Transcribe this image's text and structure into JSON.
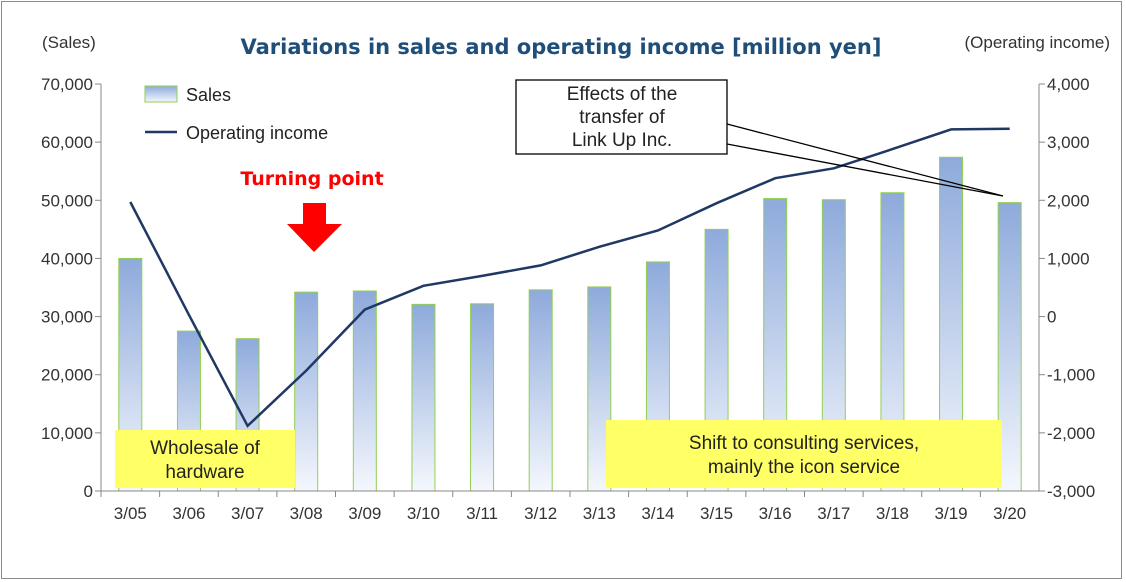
{
  "chart_data": {
    "type": "bar",
    "title": "Variations in sales and operating income [million yen]",
    "left_axis_label": "(Sales)",
    "right_axis_label": "(Operating income)",
    "categories": [
      "3/05",
      "3/06",
      "3/07",
      "3/08",
      "3/09",
      "3/10",
      "3/11",
      "3/12",
      "3/13",
      "3/14",
      "3/15",
      "3/16",
      "3/17",
      "3/18",
      "3/19",
      "3/20"
    ],
    "series": [
      {
        "name": "Sales",
        "type": "bar",
        "axis": "left",
        "values": [
          40000,
          27500,
          26200,
          34200,
          34400,
          32100,
          32200,
          34600,
          35100,
          39400,
          45000,
          50300,
          50100,
          51300,
          57400,
          49600
        ]
      },
      {
        "name": "Operating income",
        "type": "line",
        "axis": "right",
        "values": [
          1970,
          30,
          -1880,
          -930,
          120,
          530,
          700,
          880,
          1200,
          1480,
          1950,
          2380,
          2550,
          2880,
          3220,
          3230
        ]
      }
    ],
    "ylim_left": [
      0,
      70000
    ],
    "ylim_right": [
      -3000,
      4000
    ],
    "yticks_left": [
      "0",
      "10,000",
      "20,000",
      "30,000",
      "40,000",
      "50,000",
      "60,000",
      "70,000"
    ],
    "yticks_right": [
      "-3,000",
      "-2,000",
      "-1,000",
      "0",
      "1,000",
      "2,000",
      "3,000",
      "4,000"
    ],
    "yticks_right_values": [
      -3000,
      -2000,
      -1000,
      0,
      1000,
      2000,
      3000,
      4000
    ],
    "legend_position": "top-left",
    "grid": false
  },
  "annotations": {
    "turning_point": "Turning point",
    "transfer_note": [
      "Effects of the",
      "transfer of",
      "Link Up Inc."
    ],
    "wholesale": [
      "Wholesale of",
      "hardware"
    ],
    "consulting": [
      "Shift to consulting services,",
      "mainly the icon service"
    ]
  },
  "colors": {
    "bar_top": "#8eaadb",
    "bar_bottom": "#f4f7fd",
    "bar_edge": "#92d050",
    "line": "#1f3864",
    "title": "#1f4e79",
    "negative_tick": "#ff0000",
    "note_fill": "#ffff66",
    "arrow": "#ff0000"
  }
}
